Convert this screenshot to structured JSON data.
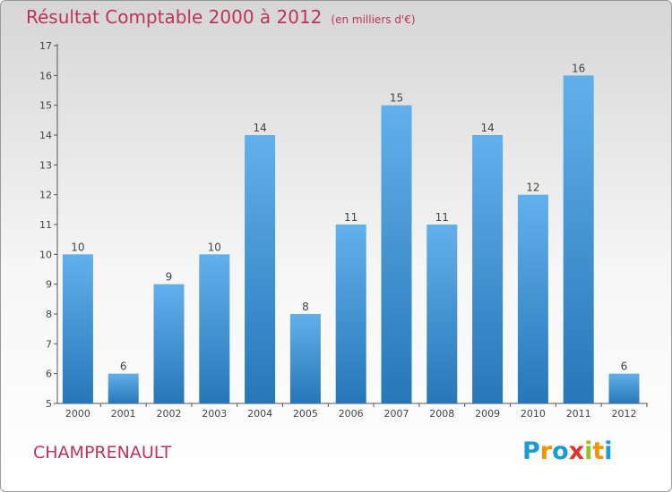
{
  "title": {
    "main": "Résultat Comptable 2000 à 2012",
    "sub": "(en milliers d'€)"
  },
  "commune": "CHAMPRENAULT",
  "logo": {
    "letters": [
      {
        "ch": "P",
        "color": "#1a9bd7"
      },
      {
        "ch": "r",
        "color": "#f29400"
      },
      {
        "ch": "o",
        "color": "#1a9bd7"
      },
      {
        "ch": "x",
        "color": "#e6332a"
      },
      {
        "ch": "i",
        "color": "#95c11f"
      },
      {
        "ch": "t",
        "color": "#f29400"
      },
      {
        "ch": "i",
        "color": "#1a9bd7"
      }
    ]
  },
  "colors": {
    "bar_top": "#62b0eb",
    "bar_bottom": "#2777b8",
    "axis": "#555555",
    "text": "#444444",
    "accent": "#c0325a"
  },
  "chart_data": {
    "type": "bar",
    "title": "Résultat Comptable 2000 à 2012",
    "units": "en milliers d'€",
    "categories": [
      "2000",
      "2001",
      "2002",
      "2003",
      "2004",
      "2005",
      "2006",
      "2007",
      "2008",
      "2009",
      "2010",
      "2011",
      "2012"
    ],
    "values": [
      10,
      6,
      9,
      10,
      14,
      8,
      11,
      15,
      11,
      14,
      12,
      16,
      6
    ],
    "ylim": [
      5,
      17
    ],
    "yticks": [
      5,
      6,
      7,
      8,
      9,
      10,
      11,
      12,
      13,
      14,
      15,
      16,
      17
    ],
    "grid": false,
    "xlabel": "",
    "ylabel": ""
  }
}
